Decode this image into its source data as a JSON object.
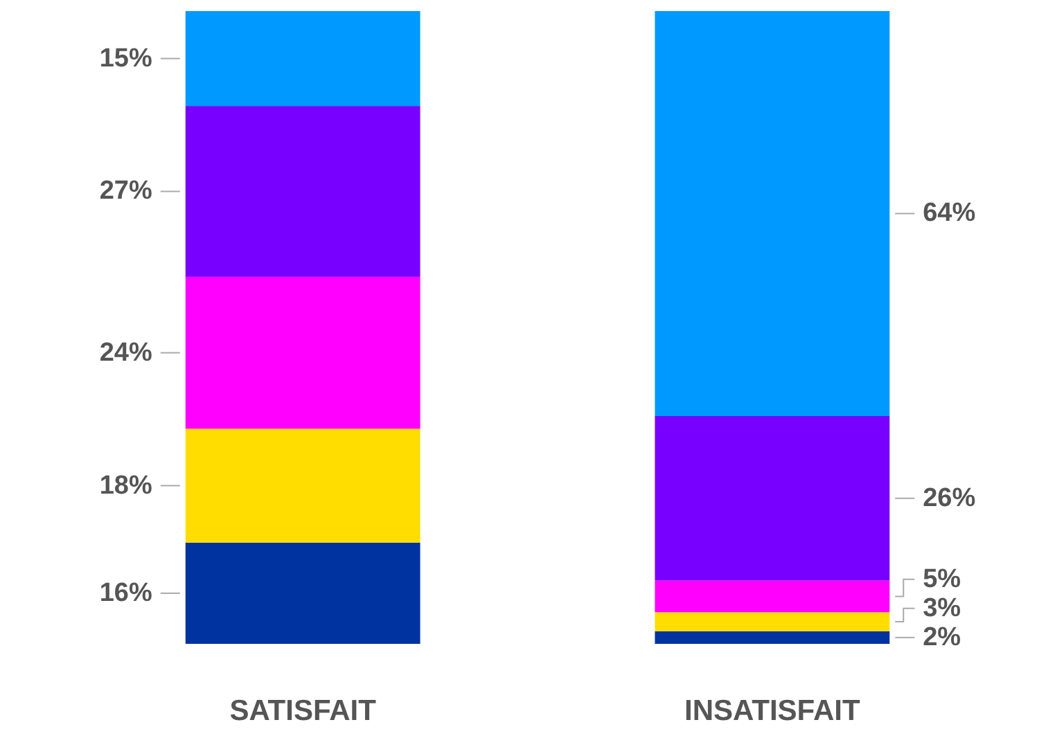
{
  "chart_data": {
    "type": "bar",
    "stacked": true,
    "tick_labels": "x",
    "categories": [
      "SATISFAIT",
      "INSATISFAIT"
    ],
    "series": [
      {
        "color": "#0033a0",
        "values": [
          16,
          2
        ],
        "value_labels": [
          "16%",
          "2%"
        ]
      },
      {
        "color": "#ffdd00",
        "values": [
          18,
          3
        ],
        "value_labels": [
          "18%",
          "3%"
        ]
      },
      {
        "color": "#ff00ff",
        "values": [
          24,
          5
        ],
        "value_labels": [
          "24%",
          "5%"
        ]
      },
      {
        "color": "#7700ff",
        "values": [
          27,
          26
        ],
        "value_labels": [
          "27%",
          "26%"
        ]
      },
      {
        "color": "#0099ff",
        "values": [
          15,
          64
        ],
        "value_labels": [
          "15%",
          "64%"
        ]
      }
    ]
  }
}
